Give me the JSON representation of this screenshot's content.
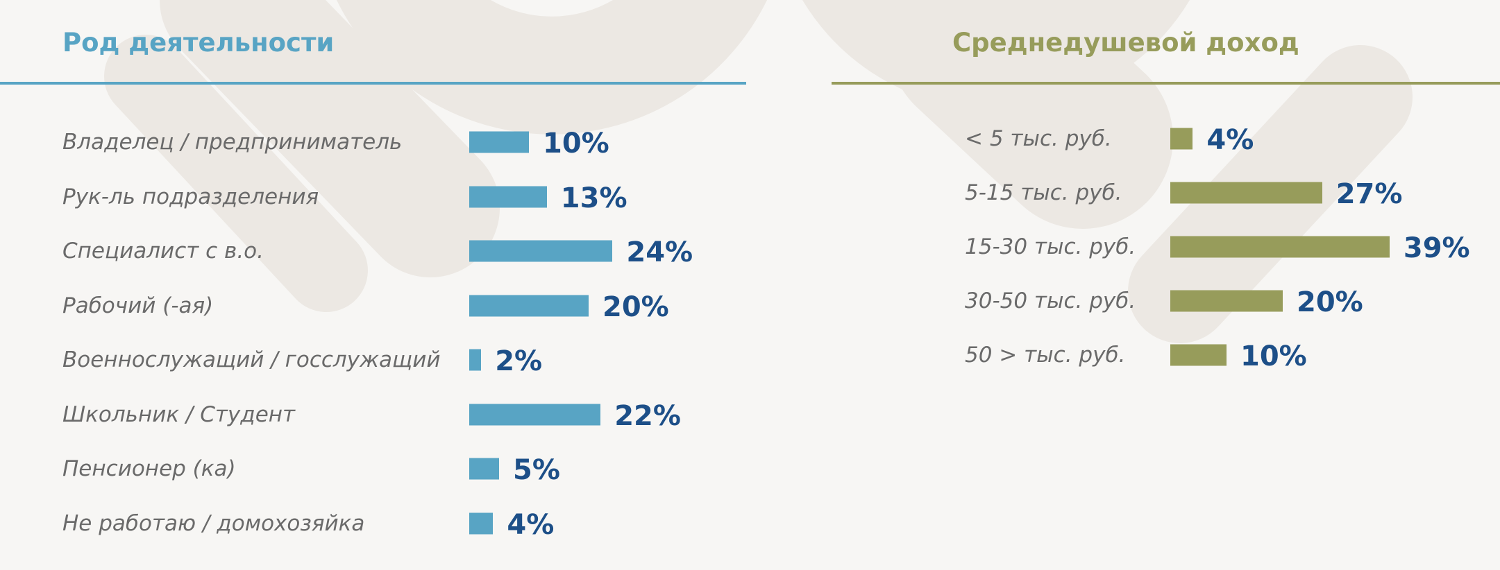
{
  "colors": {
    "background": "#f7f6f4",
    "watermark": "#ece8e3",
    "activity_accent": "#58a4c4",
    "income_accent": "#979c5b",
    "value_text": "#1d4f88",
    "label_text": "#6a6a6a"
  },
  "chart_data": [
    {
      "type": "bar",
      "orientation": "horizontal",
      "title": "Род деятельности",
      "categories": [
        "Владелец / предприниматель",
        "Рук-ль подразделения",
        "Специалист с в.о.",
        "Рабочий (-ая)",
        "Военнослужащий / госслужащий",
        "Школьник / Студент",
        "Пенсионер (ка)",
        "Не работаю / домохозяйка"
      ],
      "values": [
        10,
        13,
        24,
        20,
        2,
        22,
        5,
        4
      ],
      "value_labels": [
        "10%",
        "13%",
        "24%",
        "20%",
        "2%",
        "22%",
        "5%",
        "4%"
      ],
      "unit": "%",
      "color": "#58a4c4"
    },
    {
      "type": "bar",
      "orientation": "horizontal",
      "title": "Среднедушевой доход",
      "categories": [
        "< 5 тыс. руб.",
        "5-15 тыс. руб.",
        "15-30 тыс. руб.",
        "30-50 тыс. руб.",
        "50 > тыс. руб."
      ],
      "values": [
        4,
        27,
        39,
        20,
        10
      ],
      "value_labels": [
        "4%",
        "27%",
        "39%",
        "20%",
        "10%"
      ],
      "unit": "%",
      "color": "#979c5b"
    }
  ]
}
